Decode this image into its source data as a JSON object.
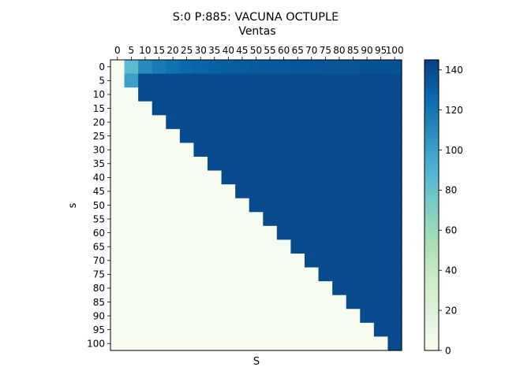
{
  "chart_data": {
    "type": "heatmap",
    "title": "S:0 P:885: VACUNA OCTUPLE",
    "subtitle": "Ventas",
    "xlabel": "S",
    "ylabel": "s",
    "x_categories": [
      "0",
      "5",
      "10",
      "15",
      "20",
      "25",
      "30",
      "35",
      "40",
      "45",
      "50",
      "55",
      "60",
      "65",
      "70",
      "75",
      "80",
      "85",
      "90",
      "95",
      "100"
    ],
    "y_categories": [
      "0",
      "5",
      "10",
      "15",
      "20",
      "25",
      "30",
      "35",
      "40",
      "45",
      "50",
      "55",
      "60",
      "65",
      "70",
      "75",
      "80",
      "85",
      "90",
      "95",
      "100"
    ],
    "x_axis_position": "top",
    "colormap": "GnBu",
    "colorbar": {
      "min": 0,
      "max": 145,
      "ticks": [
        0,
        20,
        40,
        60,
        80,
        100,
        120,
        140
      ],
      "placement": "right"
    },
    "grid": false,
    "values": [
      [
        0,
        85,
        110,
        118,
        122,
        126,
        128,
        130,
        131,
        132,
        133,
        134,
        134,
        135,
        135,
        136,
        136,
        136,
        137,
        137,
        137
      ],
      [
        0,
        100,
        140,
        140,
        140,
        140,
        140,
        140,
        140,
        140,
        140,
        140,
        140,
        140,
        140,
        140,
        140,
        140,
        140,
        140,
        140
      ],
      [
        0,
        0,
        140,
        140,
        140,
        140,
        140,
        140,
        140,
        140,
        140,
        140,
        140,
        140,
        140,
        140,
        140,
        140,
        140,
        140,
        140
      ],
      [
        0,
        0,
        0,
        140,
        140,
        140,
        140,
        140,
        140,
        140,
        140,
        140,
        140,
        140,
        140,
        140,
        140,
        140,
        140,
        140,
        140
      ],
      [
        0,
        0,
        0,
        0,
        140,
        140,
        140,
        140,
        140,
        140,
        140,
        140,
        140,
        140,
        140,
        140,
        140,
        140,
        140,
        140,
        140
      ],
      [
        0,
        0,
        0,
        0,
        0,
        140,
        140,
        140,
        140,
        140,
        140,
        140,
        140,
        140,
        140,
        140,
        140,
        140,
        140,
        140,
        140
      ],
      [
        0,
        0,
        0,
        0,
        0,
        0,
        140,
        140,
        140,
        140,
        140,
        140,
        140,
        140,
        140,
        140,
        140,
        140,
        140,
        140,
        140
      ],
      [
        0,
        0,
        0,
        0,
        0,
        0,
        0,
        140,
        140,
        140,
        140,
        140,
        140,
        140,
        140,
        140,
        140,
        140,
        140,
        140,
        140
      ],
      [
        0,
        0,
        0,
        0,
        0,
        0,
        0,
        0,
        140,
        140,
        140,
        140,
        140,
        140,
        140,
        140,
        140,
        140,
        140,
        140,
        140
      ],
      [
        0,
        0,
        0,
        0,
        0,
        0,
        0,
        0,
        0,
        140,
        140,
        140,
        140,
        140,
        140,
        140,
        140,
        140,
        140,
        140,
        140
      ],
      [
        0,
        0,
        0,
        0,
        0,
        0,
        0,
        0,
        0,
        0,
        140,
        140,
        140,
        140,
        140,
        140,
        140,
        140,
        140,
        140,
        140
      ],
      [
        0,
        0,
        0,
        0,
        0,
        0,
        0,
        0,
        0,
        0,
        0,
        140,
        140,
        140,
        140,
        140,
        140,
        140,
        140,
        140,
        140
      ],
      [
        0,
        0,
        0,
        0,
        0,
        0,
        0,
        0,
        0,
        0,
        0,
        0,
        140,
        140,
        140,
        140,
        140,
        140,
        140,
        140,
        140
      ],
      [
        0,
        0,
        0,
        0,
        0,
        0,
        0,
        0,
        0,
        0,
        0,
        0,
        0,
        140,
        140,
        140,
        140,
        140,
        140,
        140,
        140
      ],
      [
        0,
        0,
        0,
        0,
        0,
        0,
        0,
        0,
        0,
        0,
        0,
        0,
        0,
        0,
        140,
        140,
        140,
        140,
        140,
        140,
        140
      ],
      [
        0,
        0,
        0,
        0,
        0,
        0,
        0,
        0,
        0,
        0,
        0,
        0,
        0,
        0,
        0,
        140,
        140,
        140,
        140,
        140,
        140
      ],
      [
        0,
        0,
        0,
        0,
        0,
        0,
        0,
        0,
        0,
        0,
        0,
        0,
        0,
        0,
        0,
        0,
        140,
        140,
        140,
        140,
        140
      ],
      [
        0,
        0,
        0,
        0,
        0,
        0,
        0,
        0,
        0,
        0,
        0,
        0,
        0,
        0,
        0,
        0,
        0,
        140,
        140,
        140,
        140
      ],
      [
        0,
        0,
        0,
        0,
        0,
        0,
        0,
        0,
        0,
        0,
        0,
        0,
        0,
        0,
        0,
        0,
        0,
        0,
        140,
        140,
        140
      ],
      [
        0,
        0,
        0,
        0,
        0,
        0,
        0,
        0,
        0,
        0,
        0,
        0,
        0,
        0,
        0,
        0,
        0,
        0,
        0,
        140,
        140
      ],
      [
        0,
        0,
        0,
        0,
        0,
        0,
        0,
        0,
        0,
        0,
        0,
        0,
        0,
        0,
        0,
        0,
        0,
        0,
        0,
        0,
        140
      ]
    ]
  }
}
